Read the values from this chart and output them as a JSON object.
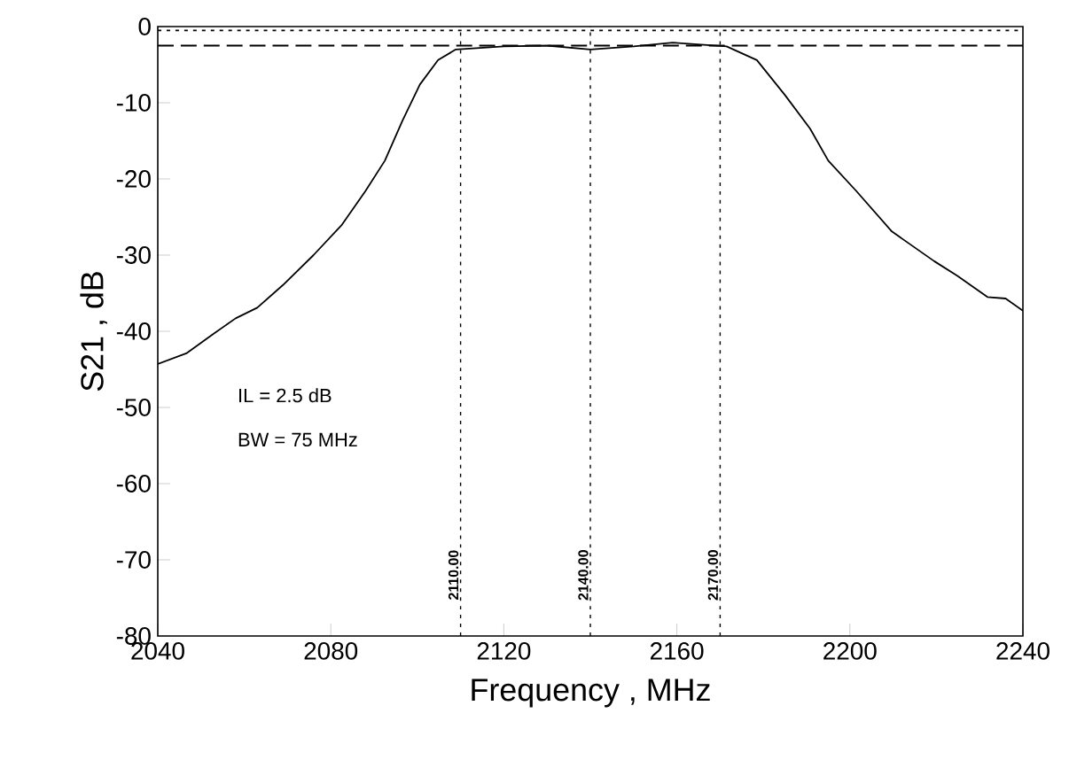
{
  "chart_data": {
    "type": "line",
    "xlabel": "Frequency , MHz",
    "ylabel": "S21 , dB",
    "xlim": [
      2040,
      2240
    ],
    "ylim": [
      -80,
      0
    ],
    "xticks": [
      2040,
      2080,
      2120,
      2160,
      2200,
      2240
    ],
    "yticks": [
      -80,
      -70,
      -60,
      -50,
      -40,
      -30,
      -20,
      -10,
      0
    ],
    "grid": false,
    "marker": "none",
    "line_style": "solid",
    "annotations": [
      "IL = 2.5 dB",
      "BW = 75 MHz"
    ],
    "ref_lines": [
      {
        "axis": "x",
        "value": 2110,
        "label": "2110.00",
        "line_style": "dotted"
      },
      {
        "axis": "x",
        "value": 2140,
        "label": "2140.00",
        "line_style": "dotted"
      },
      {
        "axis": "x",
        "value": 2170,
        "label": "2170.00",
        "line_style": "dotted"
      },
      {
        "axis": "y",
        "value": -0.5,
        "line_style": "dotted"
      },
      {
        "axis": "y",
        "value": -2.5,
        "line_style": "dashed"
      }
    ],
    "series": [
      {
        "color": "#000000",
        "x": [
          2040,
          2046.6,
          2052.7,
          2058,
          2063,
          2069,
          2076,
          2082.6,
          2088,
          2092.5,
          2096.6,
          2100.6,
          2104.8,
          2108.9,
          2120,
          2130,
          2140,
          2150,
          2159,
          2171.5,
          2178.5,
          2185,
          2190.8,
          2195,
          2201.5,
          2209.7,
          2219.5,
          2224.8,
          2231.8,
          2236,
          2240
        ],
        "values": [
          -44.3,
          -42.9,
          -40.4,
          -38.3,
          -36.9,
          -33.9,
          -30,
          -26,
          -21.6,
          -17.6,
          -12.3,
          -7.6,
          -4.4,
          -3.0,
          -2.6,
          -2.5,
          -3.0,
          -2.6,
          -2.1,
          -2.6,
          -4.4,
          -9,
          -13.4,
          -17.6,
          -21.6,
          -26.9,
          -30.8,
          -32.7,
          -35.5,
          -35.7,
          -37.3
        ]
      }
    ]
  }
}
